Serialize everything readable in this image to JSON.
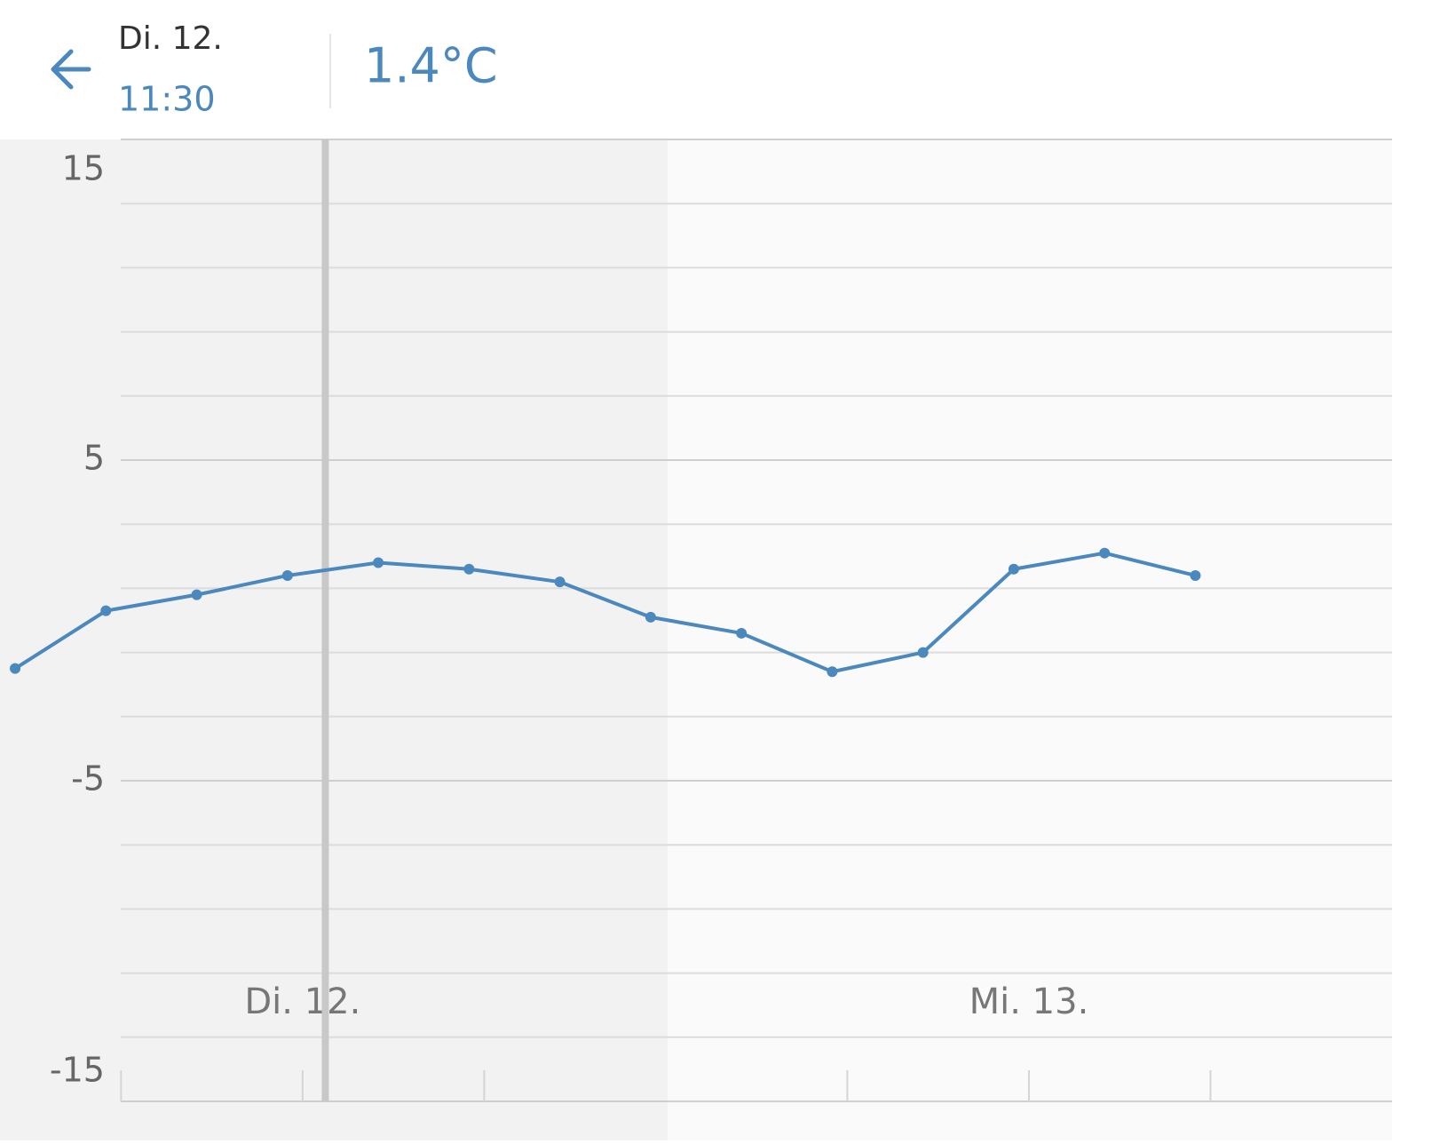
{
  "header": {
    "date": "Di. 12.",
    "time": "11:30",
    "temperature": "1.4°C"
  },
  "chart_data": {
    "type": "line",
    "x": [
      -9.5,
      -6.5,
      -3.5,
      -0.5,
      2.5,
      5.5,
      8.5,
      11.5,
      14.5,
      17.5,
      20.5,
      23.5,
      26.5,
      29.5
    ],
    "series": [
      {
        "color": "#4a88bd",
        "values": [
          -1.5,
          0.3,
          0.8,
          1.4,
          1.8,
          1.6,
          1.2,
          0.1,
          -0.4,
          -1.6,
          -1.0,
          1.6,
          2.1,
          1.4
        ]
      }
    ],
    "xlim": [
      -10,
      36
    ],
    "xticks": [
      -6,
      0,
      6,
      18,
      24,
      30
    ],
    "day_labels": [
      {
        "value": 0,
        "label": "Di. 12."
      },
      {
        "value": 24,
        "label": "Mi. 13."
      }
    ],
    "ylim": [
      -15,
      15
    ],
    "yticks": [
      -15,
      -5,
      5,
      15
    ],
    "ygrid": [
      -13,
      -11,
      -9,
      -7,
      -5,
      -3,
      -1,
      1,
      3,
      5,
      7,
      9,
      11,
      13
    ],
    "cursor_x": 0.75
  }
}
